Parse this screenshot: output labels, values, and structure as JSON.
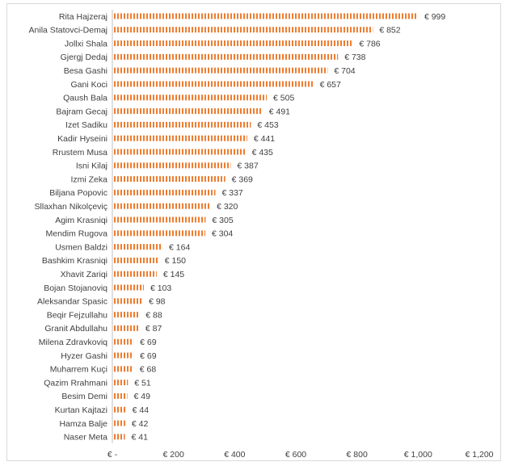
{
  "chart_data": {
    "type": "bar",
    "orientation": "horizontal",
    "title": "",
    "xlabel": "",
    "ylabel": "",
    "categories": [
      "Rita Hajzeraj",
      "Anila Statovci-Demaj",
      "Jollxi Shala",
      "Gjergj Dedaj",
      "Besa Gashi",
      "Gani Koci",
      "Qaush Bala",
      "Bajram Gecaj",
      "Izet Sadiku",
      "Kadir Hyseini",
      "Rrustem Musa",
      "Isni Kilaj",
      "Izmi Zeka",
      "Biljana Popovic",
      "Sllaxhan Nikolçeviç",
      "Agim Krasniqi",
      "Mendim Rugova",
      "Usmen Baldzi",
      "Bashkim Krasniqi",
      "Xhavit Zariqi",
      "Bojan Stojanoviq",
      "Aleksandar Spasic",
      "Beqir Fejzullahu",
      "Granit Abdullahu",
      "Milena Zdravkoviq",
      "Hyzer Gashi",
      "Muharrem Kuçi",
      "Qazim Rrahmani",
      "Besim Demi",
      "Kurtan Kajtazi",
      "Hamza Balje",
      "Naser Meta"
    ],
    "values": [
      999,
      852,
      786,
      738,
      704,
      657,
      505,
      491,
      453,
      441,
      435,
      387,
      369,
      337,
      320,
      305,
      304,
      164,
      150,
      145,
      103,
      98,
      88,
      87,
      69,
      69,
      68,
      51,
      49,
      44,
      42,
      41
    ],
    "value_labels": [
      "€ 999",
      "€ 852",
      "€ 786",
      "€ 738",
      "€ 704",
      "€ 657",
      "€ 505",
      "€ 491",
      "€ 453",
      "€ 441",
      "€ 435",
      "€ 387",
      "€ 369",
      "€ 337",
      "€ 320",
      "€ 305",
      "€ 304",
      "€ 164",
      "€ 150",
      "€ 145",
      "€ 103",
      "€ 98",
      "€ 88",
      "€ 87",
      "€ 69",
      "€ 69",
      "€ 68",
      "€ 51",
      "€ 49",
      "€ 44",
      "€ 42",
      "€ 41"
    ],
    "xlim": [
      0,
      1200
    ],
    "xticks": [
      0,
      200,
      400,
      600,
      800,
      1000,
      1200
    ],
    "xtick_labels": [
      "€ -",
      "€ 200",
      "€ 400",
      "€ 600",
      "€ 800",
      "€ 1,000",
      "€ 1,200"
    ],
    "grid": false,
    "legend": "none",
    "bar_color": "#ED7D31",
    "bar_pattern": "horizontal-lines"
  }
}
